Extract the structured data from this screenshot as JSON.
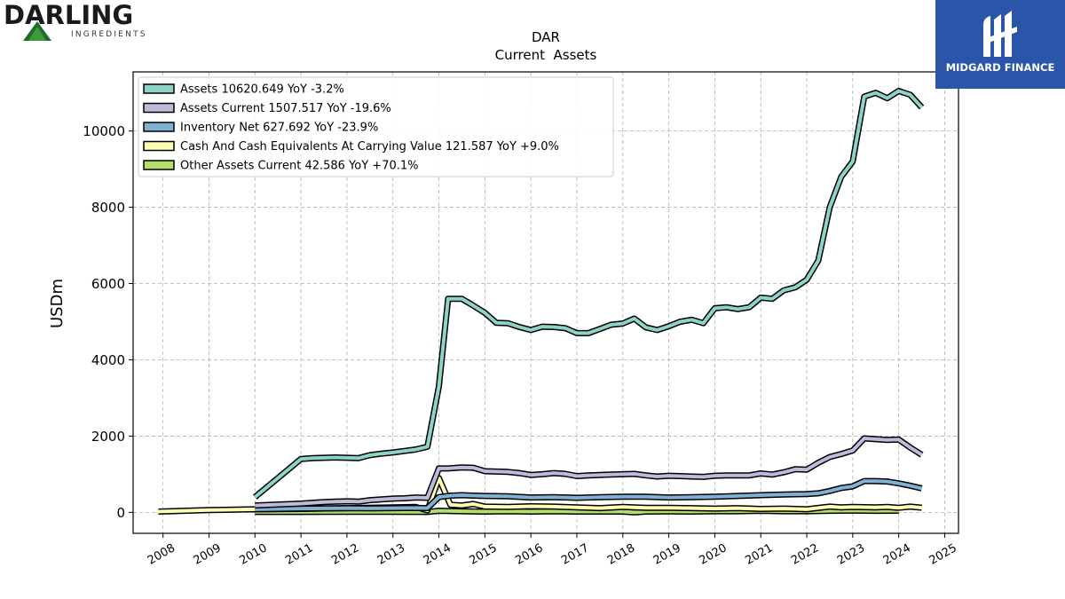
{
  "branding": {
    "company_word": "DARLING",
    "company_sub": "INGREDIENTS",
    "partner_name": "MIDGARD FINANCE"
  },
  "colors": {
    "assets": "#8dd3c7",
    "assets_current": "#bebada",
    "inventory_net": "#80b1d3",
    "cash": "#ffffb3",
    "other_assets_current": "#b3de69",
    "outline": "#000000",
    "grid": "#b0b0b0",
    "partner_bg": "#2a55a8"
  },
  "chart_data": {
    "type": "line",
    "title": "DAR",
    "subtitle": "Current  Assets",
    "xlabel": "",
    "ylabel": "USDm",
    "xlim": [
      2007.35,
      2025.3
    ],
    "ylim": [
      -550,
      11550
    ],
    "xticks": [
      2008,
      2009,
      2010,
      2011,
      2012,
      2013,
      2014,
      2015,
      2016,
      2017,
      2018,
      2019,
      2020,
      2021,
      2022,
      2023,
      2024,
      2025
    ],
    "yticks": [
      0,
      2000,
      4000,
      6000,
      8000,
      10000
    ],
    "grid": true,
    "legend_position": "top-left",
    "series": [
      {
        "name": "Assets",
        "legend": "Assets  10620.649 YoY -3.2%",
        "color_key": "assets",
        "x": [
          2010.0,
          2011.0,
          2011.25,
          2011.5,
          2011.75,
          2012.0,
          2012.25,
          2012.5,
          2012.75,
          2013.0,
          2013.25,
          2013.5,
          2013.75,
          2014.0,
          2014.2,
          2014.5,
          2014.75,
          2015.0,
          2015.25,
          2015.5,
          2015.75,
          2016.0,
          2016.25,
          2016.5,
          2016.75,
          2017.0,
          2017.25,
          2017.5,
          2017.75,
          2018.0,
          2018.25,
          2018.5,
          2018.75,
          2019.0,
          2019.25,
          2019.5,
          2019.75,
          2020.0,
          2020.25,
          2020.5,
          2020.75,
          2021.0,
          2021.25,
          2021.5,
          2021.75,
          2022.0,
          2022.25,
          2022.5,
          2022.75,
          2023.0,
          2023.25,
          2023.5,
          2023.75,
          2024.0,
          2024.25,
          2024.5
        ],
        "y": [
          400,
          1400,
          1420,
          1430,
          1440,
          1430,
          1420,
          1500,
          1540,
          1570,
          1610,
          1650,
          1720,
          3300,
          5600,
          5600,
          5420,
          5230,
          4970,
          4960,
          4860,
          4780,
          4870,
          4860,
          4830,
          4700,
          4700,
          4810,
          4920,
          4950,
          5080,
          4850,
          4780,
          4880,
          5000,
          5050,
          4960,
          5350,
          5380,
          5330,
          5380,
          5630,
          5600,
          5820,
          5900,
          6100,
          6600,
          8000,
          8800,
          9200,
          10900,
          11000,
          10860,
          11050,
          10950,
          10620
        ]
      },
      {
        "name": "Assets Current",
        "legend": "Assets Current  1507.517 YoY -19.6%",
        "color_key": "assets_current",
        "x": [
          2010.0,
          2011.0,
          2011.25,
          2011.5,
          2011.75,
          2012.0,
          2012.25,
          2012.5,
          2012.75,
          2013.0,
          2013.25,
          2013.5,
          2013.75,
          2014.0,
          2014.2,
          2014.5,
          2014.75,
          2015.0,
          2015.25,
          2015.5,
          2015.75,
          2016.0,
          2016.25,
          2016.5,
          2016.75,
          2017.0,
          2017.25,
          2017.5,
          2017.75,
          2018.0,
          2018.25,
          2018.5,
          2018.75,
          2019.0,
          2019.25,
          2019.5,
          2019.75,
          2020.0,
          2020.25,
          2020.5,
          2020.75,
          2021.0,
          2021.25,
          2021.5,
          2021.75,
          2022.0,
          2022.25,
          2022.5,
          2022.75,
          2023.0,
          2023.25,
          2023.5,
          2023.75,
          2024.0,
          2024.25,
          2024.5
        ],
        "y": [
          180,
          230,
          250,
          270,
          280,
          290,
          280,
          320,
          340,
          360,
          370,
          390,
          380,
          1150,
          1150,
          1180,
          1170,
          1080,
          1070,
          1060,
          1030,
          980,
          1000,
          1030,
          1010,
          950,
          970,
          980,
          990,
          1000,
          1010,
          970,
          940,
          960,
          950,
          940,
          930,
          960,
          970,
          970,
          970,
          1020,
          990,
          1050,
          1130,
          1120,
          1300,
          1450,
          1530,
          1620,
          1940,
          1920,
          1900,
          1910,
          1700,
          1510
        ]
      },
      {
        "name": "Inventory Net",
        "legend": "Inventory Net  627.692 YoY -23.9%",
        "color_key": "inventory_net",
        "x": [
          2010.0,
          2011.0,
          2011.5,
          2012.0,
          2012.5,
          2013.0,
          2013.5,
          2013.75,
          2014.0,
          2014.25,
          2014.5,
          2014.75,
          2015.0,
          2015.5,
          2016.0,
          2016.5,
          2017.0,
          2017.5,
          2018.0,
          2018.5,
          2019.0,
          2019.5,
          2020.0,
          2020.5,
          2021.0,
          2021.5,
          2022.0,
          2022.25,
          2022.5,
          2022.75,
          2023.0,
          2023.25,
          2023.5,
          2023.75,
          2024.0,
          2024.25,
          2024.5
        ],
        "y": [
          80,
          100,
          105,
          110,
          105,
          110,
          115,
          110,
          400,
          440,
          450,
          440,
          430,
          420,
          390,
          400,
          380,
          400,
          410,
          410,
          390,
          400,
          410,
          430,
          450,
          470,
          480,
          500,
          560,
          640,
          680,
          820,
          820,
          810,
          760,
          700,
          628
        ]
      },
      {
        "name": "Cash And Cash Equivalents At Carrying Value",
        "legend": "Cash And Cash Equivalents At Carrying Value  121.587 YoY +9.0%",
        "color_key": "cash",
        "x": [
          2007.9,
          2009.0,
          2010.0,
          2011.0,
          2012.0,
          2013.0,
          2013.5,
          2013.75,
          2014.0,
          2014.25,
          2014.5,
          2014.75,
          2015.0,
          2015.5,
          2016.0,
          2016.5,
          2017.0,
          2017.5,
          2018.0,
          2018.5,
          2019.0,
          2019.5,
          2020.0,
          2020.5,
          2021.0,
          2021.5,
          2022.0,
          2022.5,
          2022.75,
          2023.0,
          2023.5,
          2023.75,
          2024.0,
          2024.25,
          2024.5
        ],
        "y": [
          20,
          60,
          80,
          90,
          110,
          130,
          140,
          50,
          900,
          200,
          180,
          220,
          150,
          140,
          160,
          150,
          130,
          110,
          140,
          120,
          120,
          110,
          100,
          110,
          90,
          100,
          80,
          150,
          130,
          140,
          130,
          140,
          120,
          150,
          122
        ]
      },
      {
        "name": "Other Assets Current",
        "legend": "Other Assets Current  42.586 YoY +70.1%",
        "color_key": "other_assets_current",
        "x": [
          2010.0,
          2011.0,
          2012.0,
          2013.0,
          2013.75,
          2014.0,
          2014.5,
          2015.0,
          2015.5,
          2016.0,
          2016.5,
          2017.0,
          2017.5,
          2018.0,
          2018.25,
          2018.5,
          2019.0,
          2019.5,
          2020.0,
          2020.5,
          2021.0,
          2021.5,
          2022.0,
          2022.5,
          2023.0,
          2023.5,
          2024.0
        ],
        "y": [
          10,
          10,
          15,
          15,
          10,
          40,
          30,
          20,
          30,
          20,
          30,
          20,
          20,
          20,
          0,
          20,
          25,
          20,
          30,
          30,
          40,
          30,
          30,
          40,
          45,
          40,
          43
        ]
      }
    ]
  }
}
